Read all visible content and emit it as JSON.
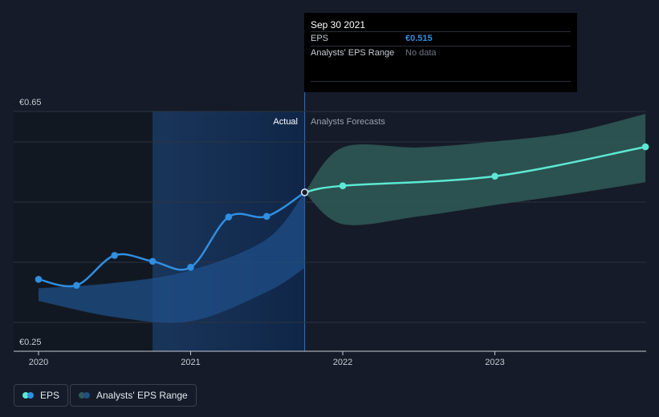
{
  "tooltip": {
    "date": "Sep 30 2021",
    "rows": [
      {
        "label": "EPS",
        "value": "€0.515"
      },
      {
        "label": "Analysts' EPS Range",
        "value": "No data"
      }
    ]
  },
  "regions": {
    "actual_label": "Actual",
    "forecast_label": "Analysts Forecasts"
  },
  "legend": {
    "eps_label": "EPS",
    "range_label": "Analysts' EPS Range"
  },
  "colors": {
    "background": "#151b28",
    "actual_line": "#2f8fe2",
    "forecast_line": "#5ce8d2",
    "forecast_band": "#2f5a57",
    "actual_band": "#1f4f88"
  },
  "chart_data": {
    "type": "line",
    "title": "",
    "xlabel": "",
    "ylabel": "",
    "x_ticks": [
      "2020",
      "2021",
      "2022",
      "2023"
    ],
    "y_ticks": [
      "€0.25",
      "€0.65"
    ],
    "ylim": [
      0.25,
      0.65
    ],
    "xlim": [
      2020.0,
      2023.99
    ],
    "grid": true,
    "legend_position": "bottom-left",
    "series": [
      {
        "name": "EPS",
        "role": "actual",
        "x": [
          2020.0,
          2020.25,
          2020.5,
          2020.75,
          2021.0,
          2021.25,
          2021.5,
          2021.75
        ],
        "y": [
          0.37,
          0.36,
          0.41,
          0.4,
          0.39,
          0.474,
          0.475,
          0.515
        ]
      },
      {
        "name": "EPS",
        "role": "forecast",
        "x": [
          2021.75,
          2022.0,
          2023.0,
          2023.99
        ],
        "y": [
          0.515,
          0.526,
          0.542,
          0.591
        ]
      }
    ],
    "actual_range_band": {
      "x": [
        2020.0,
        2020.5,
        2021.0,
        2021.5,
        2021.75
      ],
      "upper": [
        0.355,
        0.364,
        0.385,
        0.437,
        0.515
      ],
      "lower": [
        0.334,
        0.307,
        0.3,
        0.349,
        0.389
      ]
    },
    "forecast_range_band": {
      "name": "Analysts' EPS Range",
      "x": [
        2021.75,
        2022.0,
        2022.5,
        2023.0,
        2023.5,
        2023.99
      ],
      "upper": [
        0.515,
        0.59,
        0.59,
        0.6,
        0.615,
        0.646
      ],
      "lower": [
        0.515,
        0.462,
        0.475,
        0.494,
        0.512,
        0.532
      ]
    },
    "actual_forecast_divider_x": 2021.75
  }
}
